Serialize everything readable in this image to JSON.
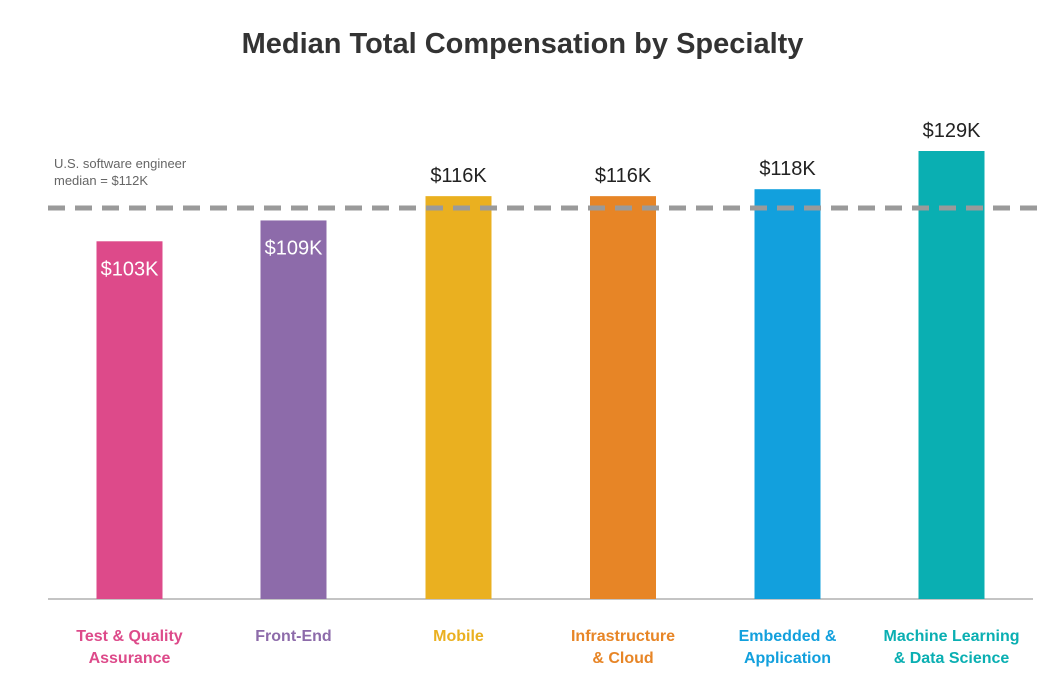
{
  "chart_data": {
    "type": "bar",
    "title": "Median Total Compensation by Specialty",
    "categories": [
      [
        "Test & Quality",
        "Assurance"
      ],
      [
        "Front-End"
      ],
      [
        "Mobile"
      ],
      [
        "Infrastructure",
        "& Cloud"
      ],
      [
        "Embedded &",
        "Application"
      ],
      [
        "Machine Learning",
        "& Data Science"
      ]
    ],
    "values": [
      103,
      109,
      116,
      116,
      118,
      129
    ],
    "value_labels": [
      "$103K",
      "$109K",
      "$116K",
      "$116K",
      "$118K",
      "$129K"
    ],
    "colors": [
      "#dd4a8a",
      "#8d6baa",
      "#eab020",
      "#e78526",
      "#12a0dd",
      "#0aafb2"
    ],
    "reference_line": {
      "value": 112,
      "label": [
        "U.S. software engineer",
        "median = $112K"
      ],
      "color": "#9a9a9a"
    },
    "ylim": [
      0,
      129
    ],
    "xlabel": "",
    "ylabel": "",
    "grid": false,
    "legend": "none"
  }
}
